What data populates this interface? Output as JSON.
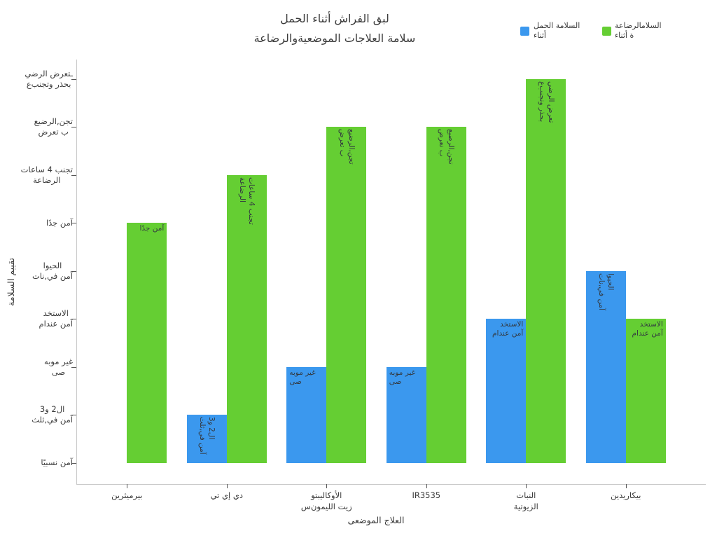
{
  "title": {
    "line1": "لبق الفراش أثناء الحمل",
    "line2": "سلامة العلاجات الموضعيةوالرضاعة"
  },
  "legend": {
    "items": [
      {
        "key": "pregnancy",
        "line1": "السلامة الحمل",
        "line2": "أثناء",
        "color": "#3b98ee"
      },
      {
        "key": "breastfeeding",
        "line1": "السلامالرضاعة",
        "line2": "ة أثناء",
        "color": "#65ce33"
      }
    ]
  },
  "axes": {
    "x_title": "العلاج الموضعى",
    "y_title": "تقييم السلامة",
    "y_ticks": [
      {
        "value": 1,
        "lines": [
          "آمن نسبيًا"
        ]
      },
      {
        "value": 2,
        "lines": [
          "ال2 و3",
          "آمن في,ثلث"
        ]
      },
      {
        "value": 3,
        "lines": [
          "غير موبه",
          "صى"
        ]
      },
      {
        "value": 4,
        "lines": [
          "الاستخد",
          "آمن عندام"
        ]
      },
      {
        "value": 5,
        "lines": [
          "الحيوا",
          "آمن في,نات"
        ]
      },
      {
        "value": 6,
        "lines": [
          "آمن جدًا"
        ]
      },
      {
        "value": 7,
        "lines": [
          "تجنب 4 ساعات",
          "الرضاعة"
        ]
      },
      {
        "value": 8,
        "lines": [
          "تجن,الرضيع",
          "ب تعرض"
        ]
      },
      {
        "value": 9,
        "lines": [
          "ـتعرض الرضي",
          "بحذر وتجنب‌ع"
        ]
      }
    ]
  },
  "colors": {
    "pregnancy": "#3b98ee",
    "breastfeeding": "#65ce33",
    "bar_label_text": "#333940",
    "axis_text": "#3c3c3c"
  },
  "chart_data": {
    "type": "bar",
    "title": "لبق الفراش أثناء الحمل سلامة العلاجات الموضعيةوالرضاعة",
    "xlabel": "العلاج الموضعى",
    "ylabel": "تقييم السلامة",
    "ylim": [
      0.55,
      9.4
    ],
    "grid": false,
    "legend_position": "top-right",
    "y_scale_meaning": [
      {
        "value": 1,
        "label": "آمن نسبيًا"
      },
      {
        "value": 2,
        "label": "ال2 و3 آمن في,ثلث"
      },
      {
        "value": 3,
        "label": "غير موبه صى"
      },
      {
        "value": 4,
        "label": "الاستخد آمن عندام"
      },
      {
        "value": 5,
        "label": "الحيوا آمن في,نات"
      },
      {
        "value": 6,
        "label": "آمن جدًا"
      },
      {
        "value": 7,
        "label": "تجنب 4 ساعات الرضاعة"
      },
      {
        "value": 8,
        "label": "تجن,الرضيع ب تعرض"
      },
      {
        "value": 9,
        "label": "ـتعرض الرضي بحذر وتجنب‌ع"
      }
    ],
    "series": [
      {
        "key": "pregnancy",
        "name": "السلامة الحمل أثناء",
        "values": [
          null,
          2,
          3,
          3,
          4,
          5
        ]
      },
      {
        "key": "breastfeeding",
        "name": "السلامالرضاعة ة أثناء",
        "values": [
          6,
          7,
          8,
          8,
          9,
          4
        ]
      }
    ],
    "groups": [
      {
        "category_lines": [
          "بيرميثرين"
        ],
        "bars": [
          {
            "series": "breastfeeding",
            "value": 6,
            "label_lines": [
              "آمن جدًا"
            ],
            "rotated": false,
            "align": "right"
          }
        ]
      },
      {
        "category_lines": [
          "دي إي تي"
        ],
        "bars": [
          {
            "series": "pregnancy",
            "value": 2,
            "label_lines": [
              "ال2 و3",
              "آمن في,ثلث"
            ],
            "rotated": true
          },
          {
            "series": "breastfeeding",
            "value": 7,
            "label_lines": [
              "تجنب 4 ساعات",
              "الرضاعة"
            ],
            "rotated": true
          }
        ]
      },
      {
        "category_lines": [
          "الأوكاليبتو",
          "زيت الليمون‌س"
        ],
        "bars": [
          {
            "series": "pregnancy",
            "value": 3,
            "label_lines": [
              "غير موبه",
              "صى"
            ],
            "rotated": false,
            "align": "left"
          },
          {
            "series": "breastfeeding",
            "value": 8,
            "label_lines": [
              "تجن,الرضيع",
              "ب تعرض"
            ],
            "rotated": true
          }
        ]
      },
      {
        "category_lines": [
          "IR3535"
        ],
        "bars": [
          {
            "series": "pregnancy",
            "value": 3,
            "label_lines": [
              "غير موبه",
              "صى"
            ],
            "rotated": false,
            "align": "left"
          },
          {
            "series": "breastfeeding",
            "value": 8,
            "label_lines": [
              "تجن,الرضيع",
              "ب تعرض"
            ],
            "rotated": true
          }
        ]
      },
      {
        "category_lines": [
          "النبات",
          "الزيوتية"
        ],
        "bars": [
          {
            "series": "pregnancy",
            "value": 4,
            "label_lines": [
              "الاستخد",
              "آمن عندام"
            ],
            "rotated": false,
            "align": "right"
          },
          {
            "series": "breastfeeding",
            "value": 9,
            "label_lines": [
              "تعرض الرضي",
              "بحذر وتجنب‌ع"
            ],
            "rotated": true
          }
        ]
      },
      {
        "category_lines": [
          "بيكاريدين"
        ],
        "bars": [
          {
            "series": "pregnancy",
            "value": 5,
            "label_lines": [
              "الحيوا",
              "آمن في,نات"
            ],
            "rotated": true
          },
          {
            "series": "breastfeeding",
            "value": 4,
            "label_lines": [
              "الاستخد",
              "آمن عندام"
            ],
            "rotated": false,
            "align": "right"
          }
        ]
      }
    ]
  }
}
